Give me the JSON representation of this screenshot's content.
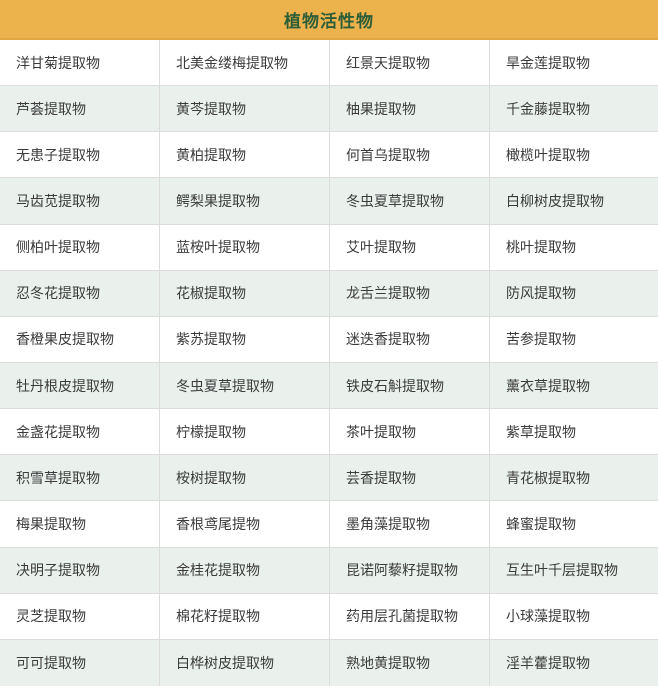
{
  "header": {
    "title": "植物活性物"
  },
  "colors": {
    "header_bg": "#ecb24c",
    "header_edge": "#e0a843",
    "header_text": "#2e5e38",
    "row_bg": "#ffffff",
    "row_alt_bg": "#eaf1ec",
    "border": "#dcdcdc",
    "cell_text": "#3b3b3b"
  },
  "table": {
    "columns": 4,
    "rows": [
      [
        "洋甘菊提取物",
        "北美金缕梅提取物",
        "红景天提取物",
        "旱金莲提取物"
      ],
      [
        "芦荟提取物",
        "黄芩提取物",
        "柚果提取物",
        "千金藤提取物"
      ],
      [
        "无患子提取物",
        "黄柏提取物",
        "何首乌提取物",
        "橄榄叶提取物"
      ],
      [
        "马齿苋提取物",
        "鳄梨果提取物",
        "冬虫夏草提取物",
        "白柳树皮提取物"
      ],
      [
        "侧柏叶提取物",
        "蓝桉叶提取物",
        "艾叶提取物",
        "桃叶提取物"
      ],
      [
        "忍冬花提取物",
        "花椒提取物",
        "龙舌兰提取物",
        "防风提取物"
      ],
      [
        "香橙果皮提取物",
        "紫苏提取物",
        "迷迭香提取物",
        "苦参提取物"
      ],
      [
        "牡丹根皮提取物",
        "冬虫夏草提取物",
        "铁皮石斛提取物",
        "薰衣草提取物"
      ],
      [
        "金盏花提取物",
        "柠檬提取物",
        "茶叶提取物",
        "紫草提取物"
      ],
      [
        "积雪草提取物",
        "桉树提取物",
        "芸香提取物",
        "青花椒提取物"
      ],
      [
        "梅果提取物",
        "香根鸢尾提物",
        "墨角藻提取物",
        "蜂蜜提取物"
      ],
      [
        "决明子提取物",
        "金桂花提取物",
        "昆诺阿藜籽提取物",
        "互生叶千层提取物"
      ],
      [
        "灵芝提取物",
        "棉花籽提取物",
        "药用层孔菌提取物",
        "小球藻提取物"
      ],
      [
        "可可提取物",
        "白桦树皮提取物",
        "熟地黄提取物",
        "淫羊藿提取物"
      ]
    ]
  }
}
